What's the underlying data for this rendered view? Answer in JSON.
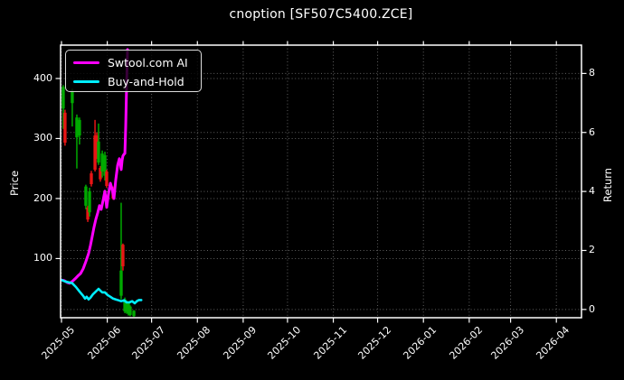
{
  "title": "cnoption [SF507C5400.ZCE]",
  "colors": {
    "background": "#000000",
    "text": "#ffffff",
    "spine": "#ffffff",
    "grid": "rgba(255,255,255,0.38)"
  },
  "chart_data": {
    "type": "candlestick+line",
    "title": "cnoption [SF507C5400.ZCE]",
    "grid": "dotted, both y-axes and monthly x positions",
    "legend_position": "upper left",
    "left_axis": {
      "label": "Price",
      "ticks": [
        100,
        200,
        300,
        400
      ],
      "ylim": [
        1.4,
        455.6
      ]
    },
    "right_axis": {
      "label": "Return",
      "ticks": [
        0,
        2,
        4,
        6,
        8
      ],
      "ylim": [
        -0.28,
        8.96
      ]
    },
    "x_axis": {
      "tick_labels": [
        "2025-05",
        "2025-06",
        "2025-07",
        "2025-08",
        "2025-09",
        "2025-10",
        "2025-11",
        "2025-12",
        "2026-01",
        "2026-02",
        "2026-03",
        "2026-04"
      ],
      "tick_days": [
        0,
        31,
        61,
        92,
        123,
        153,
        184,
        214,
        245,
        276,
        304,
        335
      ],
      "xlim_days": [
        -0.6,
        352
      ],
      "day_zero_date": "2025-05-01",
      "tick_rotation_deg": 45
    },
    "series": [
      {
        "name": "Swtool.com AI",
        "color": "#ff00ff",
        "axis": "return",
        "line_width": 3,
        "points": [
          [
            0,
            1.0
          ],
          [
            1.8,
            0.98
          ],
          [
            3.7,
            0.92
          ],
          [
            5.5,
            0.89
          ],
          [
            7.3,
            0.95
          ],
          [
            9.2,
            1.04
          ],
          [
            11,
            1.13
          ],
          [
            12.9,
            1.22
          ],
          [
            14.7,
            1.38
          ],
          [
            16.5,
            1.62
          ],
          [
            18.4,
            1.9
          ],
          [
            19.6,
            2.17
          ],
          [
            20.8,
            2.48
          ],
          [
            22,
            2.78
          ],
          [
            23.3,
            3.06
          ],
          [
            24.5,
            3.27
          ],
          [
            25.7,
            3.52
          ],
          [
            26.9,
            3.39
          ],
          [
            28.2,
            3.7
          ],
          [
            29.4,
            4.01
          ],
          [
            30.6,
            3.46
          ],
          [
            31.8,
            3.91
          ],
          [
            33.1,
            4.28
          ],
          [
            34.3,
            4.07
          ],
          [
            35.5,
            3.76
          ],
          [
            36.7,
            4.37
          ],
          [
            38,
            4.89
          ],
          [
            39.2,
            5.11
          ],
          [
            40.4,
            4.74
          ],
          [
            41,
            5.05
          ],
          [
            41.6,
            5.2
          ],
          [
            42.3,
            5.26
          ],
          [
            42.9,
            5.29
          ],
          [
            43.5,
            6.21
          ],
          [
            44.1,
            7.58
          ],
          [
            44.7,
            8.81
          ]
        ]
      },
      {
        "name": "Buy-and-Hold",
        "color": "#00eeff",
        "axis": "return",
        "line_width": 2.6,
        "points": [
          [
            0,
            1.0
          ],
          [
            2.4,
            0.95
          ],
          [
            4.9,
            0.92
          ],
          [
            7.3,
            0.89
          ],
          [
            9.8,
            0.76
          ],
          [
            12.2,
            0.61
          ],
          [
            14.7,
            0.46
          ],
          [
            15.9,
            0.37
          ],
          [
            17.1,
            0.43
          ],
          [
            18.4,
            0.34
          ],
          [
            19.6,
            0.4
          ],
          [
            21.4,
            0.52
          ],
          [
            23.3,
            0.61
          ],
          [
            25.1,
            0.7
          ],
          [
            26.3,
            0.64
          ],
          [
            27.6,
            0.58
          ],
          [
            29.4,
            0.58
          ],
          [
            31.2,
            0.49
          ],
          [
            33.1,
            0.43
          ],
          [
            34.9,
            0.37
          ],
          [
            36.7,
            0.34
          ],
          [
            38.6,
            0.31
          ],
          [
            40.4,
            0.28
          ],
          [
            42.3,
            0.31
          ],
          [
            44.1,
            0.24
          ],
          [
            45.9,
            0.24
          ],
          [
            47.8,
            0.28
          ],
          [
            49.6,
            0.21
          ],
          [
            51,
            0.28
          ],
          [
            52.5,
            0.32
          ],
          [
            54,
            0.32
          ]
        ]
      }
    ],
    "candles": {
      "axis": "price",
      "up_color": "#00aa00",
      "down_color": "#e81515",
      "columns": [
        "day",
        "open",
        "high",
        "low",
        "close"
      ],
      "data": [
        [
          1.2,
          350,
          389,
          316,
          386
        ],
        [
          2.4,
          343,
          348,
          288,
          293
        ],
        [
          7.3,
          359,
          383,
          320,
          380
        ],
        [
          10.4,
          302,
          340,
          250,
          335
        ],
        [
          12.2,
          305,
          335,
          290,
          331
        ],
        [
          16.5,
          188,
          223,
          182,
          220
        ],
        [
          17.8,
          185,
          188,
          161,
          165
        ],
        [
          19.0,
          177,
          218,
          170,
          212
        ],
        [
          20.2,
          242,
          246,
          220,
          224
        ],
        [
          22.7,
          305,
          331,
          245,
          248
        ],
        [
          23.9,
          305,
          310,
          266,
          272
        ],
        [
          25.1,
          260,
          325,
          256,
          295
        ],
        [
          26.3,
          251,
          254,
          228,
          232
        ],
        [
          27.6,
          245,
          280,
          235,
          275
        ],
        [
          29.4,
          238,
          278,
          230,
          272
        ],
        [
          30.6,
          245,
          248,
          218,
          221
        ],
        [
          34.9,
          217,
          220,
          198,
          200
        ],
        [
          40.4,
          38,
          193,
          32,
          80
        ],
        [
          41.6,
          123,
          125,
          80,
          87
        ],
        [
          42.9,
          12,
          35,
          9,
          32
        ],
        [
          44.1,
          11,
          30,
          8,
          29
        ],
        [
          45.3,
          8,
          28,
          5,
          26
        ],
        [
          46.5,
          6,
          22,
          4,
          20
        ],
        [
          49.0,
          4,
          14,
          3,
          13
        ]
      ]
    }
  }
}
